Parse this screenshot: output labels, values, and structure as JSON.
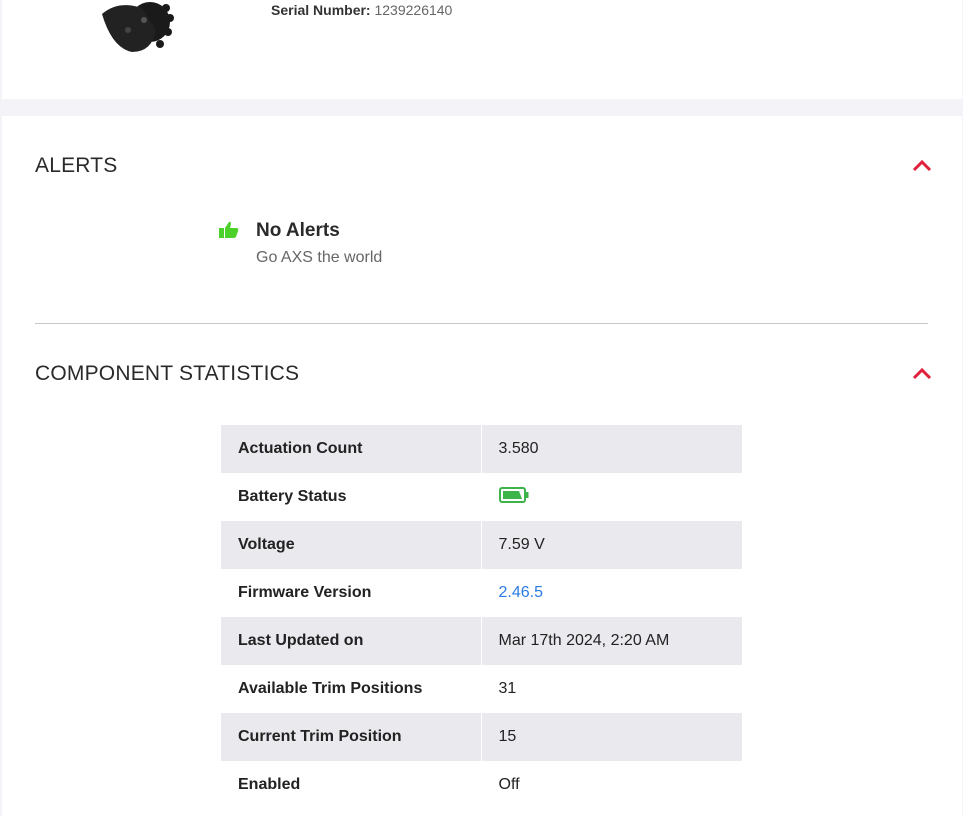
{
  "header": {
    "serial_label": "Serial Number:",
    "serial_value": "1239226140"
  },
  "alerts": {
    "title": "ALERTS",
    "status_title": "No Alerts",
    "status_sub": "Go AXS the world",
    "icon": "thumbs-up-icon",
    "icon_color": "#4cd12a",
    "chevron_color": "#e0203c"
  },
  "stats": {
    "title": "COMPONENT STATISTICS",
    "rows": [
      {
        "label": "Actuation Count",
        "value": "3.580"
      },
      {
        "label": "Battery Status",
        "value": null,
        "battery_level": "full",
        "battery_color": "#3cb44a"
      },
      {
        "label": "Voltage",
        "value": "7.59 V"
      },
      {
        "label": "Firmware Version",
        "value": "2.46.5",
        "link": true
      },
      {
        "label": "Last Updated on",
        "value": "Mar 17th 2024, 2:20 AM"
      },
      {
        "label": "Available Trim Positions",
        "value": "31"
      },
      {
        "label": "Current Trim Position",
        "value": "15"
      },
      {
        "label": "Enabled",
        "value": "Off"
      }
    ]
  }
}
